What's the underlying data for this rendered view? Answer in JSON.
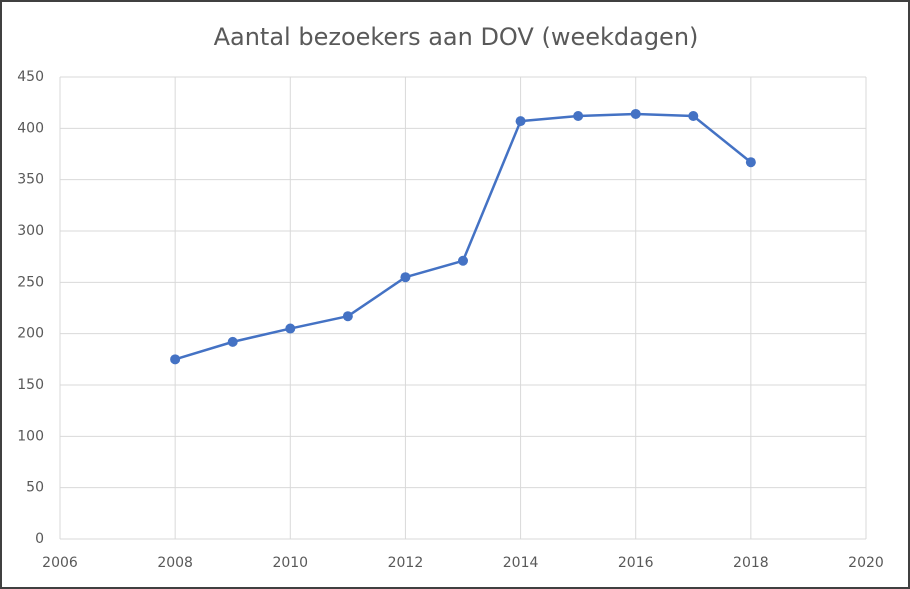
{
  "chart_data": {
    "type": "line",
    "title": "Aantal bezoekers aan DOV (weekdagen)",
    "x": [
      2008,
      2009,
      2010,
      2011,
      2012,
      2013,
      2014,
      2015,
      2016,
      2017,
      2018
    ],
    "series": [
      {
        "color": "#4472c4",
        "values": [
          175,
          192,
          205,
          217,
          255,
          271,
          407,
          412,
          414,
          412,
          367
        ]
      }
    ],
    "xlim": [
      2006,
      2020
    ],
    "xticks": [
      2006,
      2008,
      2010,
      2012,
      2014,
      2016,
      2018,
      2020
    ],
    "ylim": [
      0,
      450
    ],
    "yticks": [
      0,
      50,
      100,
      150,
      200,
      250,
      300,
      350,
      400,
      450
    ],
    "grid": true
  }
}
